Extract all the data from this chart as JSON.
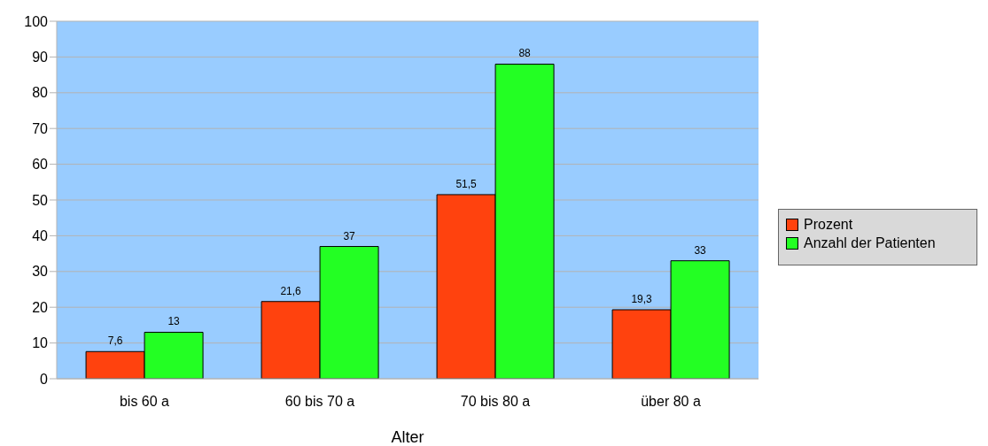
{
  "chart_data": {
    "type": "bar",
    "xlabel": "Alter",
    "categories": [
      "bis 60 a",
      "60 bis 70 a",
      "70 bis 80 a",
      "über 80 a"
    ],
    "series": [
      {
        "name": "Prozent",
        "color": "#ff420e",
        "values": [
          7.6,
          21.6,
          51.5,
          19.3
        ],
        "value_labels": [
          "7,6",
          "21,6",
          "51,5",
          "19,3"
        ]
      },
      {
        "name": "Anzahl der Patienten",
        "color": "#23ff23",
        "values": [
          13,
          37,
          88,
          33
        ],
        "value_labels": [
          "13",
          "37",
          "88",
          "33"
        ]
      }
    ],
    "ylim": [
      0,
      100
    ],
    "yticks": [
      0,
      10,
      20,
      30,
      40,
      50,
      60,
      70,
      80,
      90,
      100
    ],
    "grid": "y",
    "legend": "right"
  }
}
